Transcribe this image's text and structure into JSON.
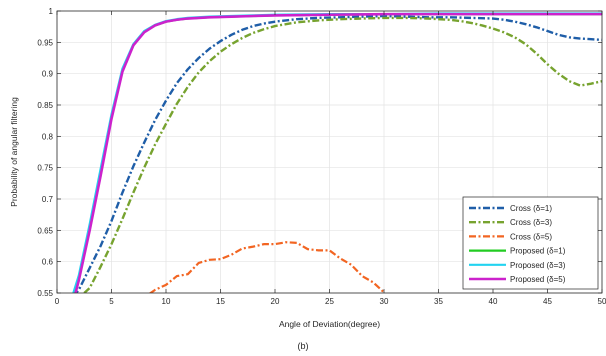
{
  "chart_data": {
    "type": "line",
    "title": "",
    "caption": "(b)",
    "xlabel": "Angle of Deviation(degree)",
    "ylabel": "Probability of angular filtering",
    "xlim": [
      0,
      50
    ],
    "ylim": [
      0.55,
      1.0
    ],
    "xticks": [
      0,
      5,
      10,
      15,
      20,
      25,
      30,
      35,
      40,
      45,
      50
    ],
    "yticks": [
      0.55,
      0.6,
      0.65,
      0.7,
      0.75,
      0.8,
      0.85,
      0.9,
      0.95,
      1
    ],
    "ytick_labels": [
      "0.55",
      "0.6",
      "0.65",
      "0.7",
      "0.75",
      "0.8",
      "0.85",
      "0.9",
      "0.95",
      "1"
    ],
    "grid": true,
    "legend_position": "bottom-right",
    "series": [
      {
        "name": "Cross (δ=1)",
        "color": "#1f5ea8",
        "dash": "dashdot",
        "width": 2.4,
        "x": [
          1.5,
          2,
          3,
          4,
          5,
          6,
          7,
          8,
          9,
          10,
          11,
          12,
          13,
          14,
          15,
          16,
          17,
          18,
          19,
          20,
          22,
          24,
          26,
          28,
          30,
          32,
          34,
          36,
          38,
          40,
          41,
          42,
          43,
          44,
          45,
          46,
          47,
          48,
          49,
          50
        ],
        "y": [
          0.545,
          0.555,
          0.59,
          0.625,
          0.665,
          0.71,
          0.752,
          0.79,
          0.826,
          0.857,
          0.885,
          0.907,
          0.925,
          0.94,
          0.952,
          0.962,
          0.97,
          0.976,
          0.98,
          0.983,
          0.987,
          0.989,
          0.99,
          0.991,
          0.992,
          0.991,
          0.99,
          0.99,
          0.989,
          0.988,
          0.986,
          0.983,
          0.979,
          0.974,
          0.968,
          0.962,
          0.958,
          0.956,
          0.955,
          0.954
        ]
      },
      {
        "name": "Cross (δ=3)",
        "color": "#77a32f",
        "dash": "dashdot",
        "width": 2.4,
        "x": [
          2.5,
          3,
          4,
          5,
          6,
          7,
          8,
          9,
          10,
          11,
          12,
          13,
          14,
          15,
          16,
          17,
          18,
          19,
          20,
          22,
          24,
          26,
          28,
          30,
          32,
          34,
          36,
          37,
          38,
          39,
          40,
          41,
          42,
          43,
          44,
          45,
          46,
          47,
          48,
          49,
          50
        ],
        "y": [
          0.55,
          0.558,
          0.592,
          0.628,
          0.668,
          0.71,
          0.75,
          0.787,
          0.82,
          0.852,
          0.879,
          0.902,
          0.92,
          0.935,
          0.947,
          0.957,
          0.965,
          0.971,
          0.976,
          0.982,
          0.985,
          0.987,
          0.988,
          0.989,
          0.989,
          0.988,
          0.986,
          0.984,
          0.981,
          0.977,
          0.972,
          0.966,
          0.958,
          0.947,
          0.932,
          0.915,
          0.9,
          0.888,
          0.881,
          0.884,
          0.888
        ]
      },
      {
        "name": "Cross (δ=5)",
        "color": "#f26522",
        "dash": "dashdot",
        "width": 2.2,
        "x": [
          8.5,
          9,
          10,
          11,
          12,
          13,
          14,
          15,
          16,
          17,
          18,
          19,
          20,
          21,
          22,
          23,
          24,
          25,
          26,
          27,
          28,
          29,
          30
        ],
        "y": [
          0.549,
          0.555,
          0.563,
          0.577,
          0.58,
          0.598,
          0.603,
          0.604,
          0.611,
          0.621,
          0.624,
          0.628,
          0.628,
          0.631,
          0.63,
          0.62,
          0.618,
          0.618,
          0.605,
          0.595,
          0.577,
          0.567,
          0.551
        ]
      },
      {
        "name": "Proposed (δ=1)",
        "color": "#22cc22",
        "dash": "solid",
        "width": 2.2,
        "x": [
          1.7,
          2,
          3,
          4,
          5,
          6,
          7,
          8,
          9,
          10,
          11,
          12,
          14,
          16,
          18,
          20,
          25,
          30,
          35,
          40,
          45,
          50
        ],
        "y": [
          0.55,
          0.575,
          0.655,
          0.74,
          0.83,
          0.905,
          0.945,
          0.967,
          0.977,
          0.983,
          0.986,
          0.988,
          0.99,
          0.991,
          0.992,
          0.993,
          0.994,
          0.995,
          0.995,
          0.995,
          0.995,
          0.995
        ]
      },
      {
        "name": "Proposed (δ=3)",
        "color": "#22d3f0",
        "dash": "solid",
        "width": 2.2,
        "x": [
          1.5,
          2,
          3,
          4,
          5,
          6,
          7,
          8,
          9,
          10,
          11,
          12,
          14,
          16,
          18,
          20,
          25,
          30,
          35,
          40,
          45,
          50
        ],
        "y": [
          0.55,
          0.578,
          0.66,
          0.748,
          0.835,
          0.908,
          0.947,
          0.968,
          0.978,
          0.984,
          0.987,
          0.989,
          0.991,
          0.992,
          0.993,
          0.994,
          0.995,
          0.995,
          0.996,
          0.996,
          0.996,
          0.996
        ]
      },
      {
        "name": "Proposed (δ=5)",
        "color": "#cc22cc",
        "dash": "solid",
        "width": 2.6,
        "x": [
          1.7,
          2,
          3,
          4,
          5,
          6,
          7,
          8,
          9,
          10,
          11,
          12,
          14,
          16,
          18,
          20,
          25,
          30,
          35,
          40,
          45,
          50
        ],
        "y": [
          0.55,
          0.57,
          0.65,
          0.737,
          0.828,
          0.903,
          0.945,
          0.966,
          0.977,
          0.983,
          0.986,
          0.988,
          0.99,
          0.991,
          0.992,
          0.993,
          0.994,
          0.995,
          0.995,
          0.995,
          0.995,
          0.995
        ]
      }
    ]
  }
}
